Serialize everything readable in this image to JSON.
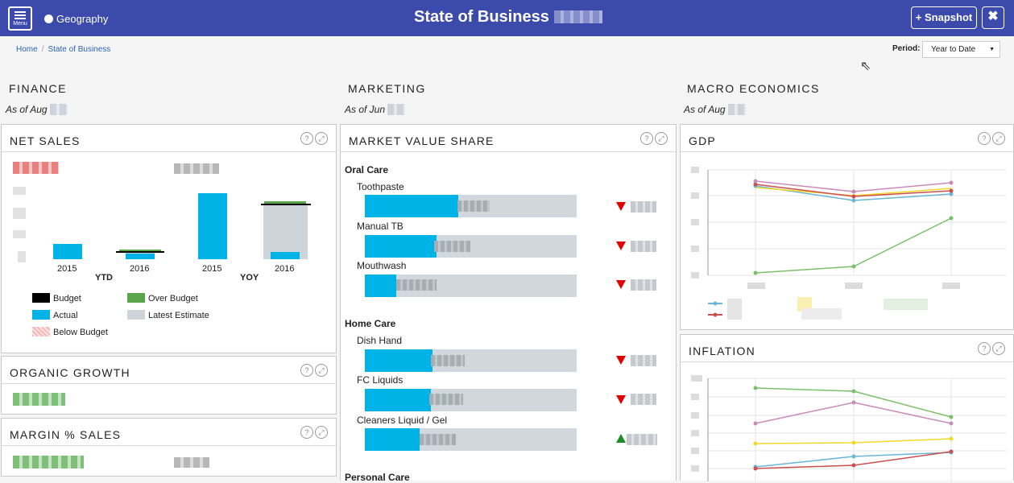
{
  "topbar": {
    "menu_label": "Menu",
    "region_label": "Geography",
    "title": "State of Business",
    "snapshot_label": "+ Snapshot",
    "expand_icon": "expand-icon"
  },
  "breadcrumb": {
    "home": "Home",
    "separator": "/",
    "current": "State of Business"
  },
  "period": {
    "label": "Period:",
    "value": "Year to Date"
  },
  "sections": {
    "finance": {
      "title": "FINANCE",
      "as_of": "As of Aug"
    },
    "marketing": {
      "title": "MARKETING",
      "as_of": "As of Jun"
    },
    "macro": {
      "title": "MACRO ECONOMICS",
      "as_of": "As of Aug"
    }
  },
  "net_sales": {
    "title": "NET SALES",
    "x_labels": [
      "2015",
      "2016",
      "2015",
      "2016"
    ],
    "group_labels": [
      "YTD",
      "YOY"
    ],
    "legend": {
      "budget": "Budget",
      "over_budget": "Over Budget",
      "actual": "Actual",
      "latest_estimate": "Latest Estimate",
      "below_budget": "Below Budget"
    },
    "colors": {
      "actual": "#00b3e6",
      "latest_estimate": "#cdd5db",
      "budget": "#000000",
      "over_budget": "#5aa54b",
      "below_budget": "#f3b8b8"
    }
  },
  "organic_growth": {
    "title": "ORGANIC GROWTH"
  },
  "margin_sales": {
    "title": "MARGIN % SALES"
  },
  "market_value_share": {
    "title": "MARKET VALUE SHARE",
    "groups": [
      {
        "name": "Oral Care",
        "items": [
          {
            "label": "Toothpaste",
            "share": 0.44,
            "trend": "down"
          },
          {
            "label": "Manual TB",
            "share": 0.34,
            "trend": "down"
          },
          {
            "label": "Mouthwash",
            "share": 0.15,
            "trend": "down"
          }
        ]
      },
      {
        "name": "Home Care",
        "items": [
          {
            "label": "Dish Hand",
            "share": 0.32,
            "trend": "down"
          },
          {
            "label": "FC Liquids",
            "share": 0.31,
            "trend": "down"
          },
          {
            "label": "Cleaners Liquid / Gel",
            "share": 0.26,
            "trend": "up"
          }
        ]
      },
      {
        "name": "Personal Care",
        "items": []
      }
    ]
  },
  "gdp": {
    "title": "GDP"
  },
  "inflation": {
    "title": "INFLATION"
  },
  "icons": {
    "help": "?",
    "expand": "⤢"
  }
}
